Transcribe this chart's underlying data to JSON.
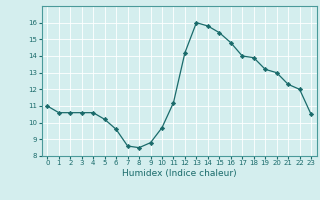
{
  "x": [
    0,
    1,
    2,
    3,
    4,
    5,
    6,
    7,
    8,
    9,
    10,
    11,
    12,
    13,
    14,
    15,
    16,
    17,
    18,
    19,
    20,
    21,
    22,
    23
  ],
  "y": [
    11.0,
    10.6,
    10.6,
    10.6,
    10.6,
    10.2,
    9.6,
    8.6,
    8.5,
    8.8,
    9.7,
    11.2,
    14.2,
    16.0,
    15.8,
    15.4,
    14.8,
    14.0,
    13.9,
    13.2,
    13.0,
    12.3,
    12.0,
    10.5
  ],
  "xlim": [
    -0.5,
    23.5
  ],
  "ylim": [
    8,
    17
  ],
  "yticks": [
    8,
    9,
    10,
    11,
    12,
    13,
    14,
    15,
    16
  ],
  "xticks": [
    0,
    1,
    2,
    3,
    4,
    5,
    6,
    7,
    8,
    9,
    10,
    11,
    12,
    13,
    14,
    15,
    16,
    17,
    18,
    19,
    20,
    21,
    22,
    23
  ],
  "xlabel": "Humidex (Indice chaleur)",
  "line_color": "#1a6b6b",
  "marker_color": "#1a6b6b",
  "bg_color": "#d4eeee",
  "grid_color": "#ffffff",
  "axis_color": "#4a9a9a",
  "tick_color": "#1a6b6b",
  "label_color": "#1a6b6b"
}
